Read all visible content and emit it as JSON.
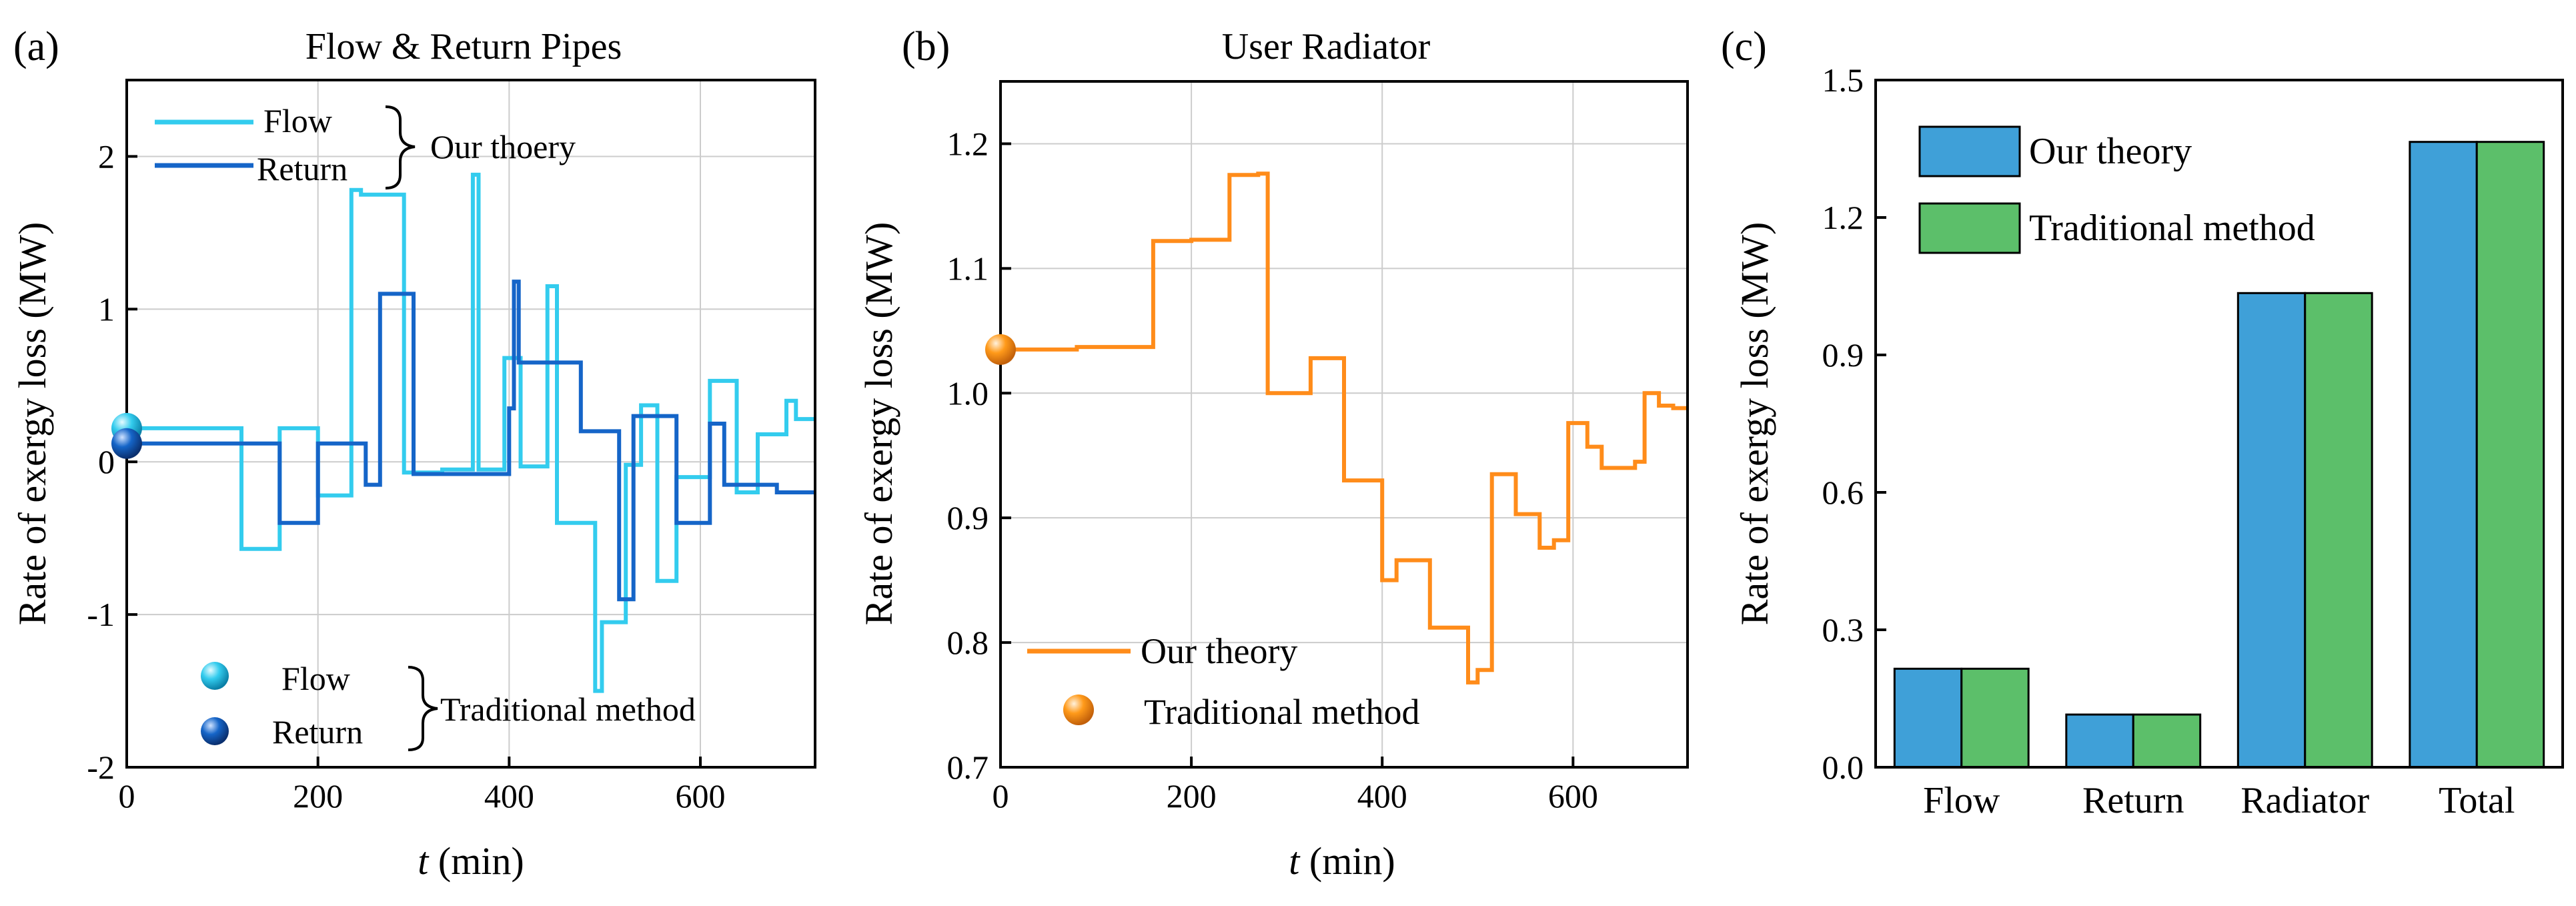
{
  "colors": {
    "flow": "#33CCEE",
    "return": "#1565C8",
    "radiator": "#FF8C1A",
    "our_theory_bar": "#3FA0D8",
    "traditional_bar": "#5CBF6A",
    "grid": "#CCCCCC"
  },
  "chart_data": [
    {
      "id": "a",
      "type": "line",
      "panel_label": "(a)",
      "title": "Flow & Return Pipes",
      "xlabel_var": "t",
      "xlabel_unit": " (min)",
      "ylabel": "Rate of exergy loss (MW)",
      "xlim": [
        0,
        720
      ],
      "ylim": [
        -2,
        2.5
      ],
      "xticks": [
        0,
        200,
        400,
        600
      ],
      "yticks": [
        -2,
        -1,
        0,
        1,
        2
      ],
      "grid": true,
      "series": [
        {
          "name": "Flow",
          "color_key": "flow",
          "x": [
            0,
            120,
            120,
            160,
            160,
            200,
            200,
            235,
            235,
            245,
            245,
            290,
            290,
            330,
            330,
            362,
            362,
            368,
            368,
            395,
            395,
            412,
            412,
            440,
            440,
            450,
            450,
            490,
            490,
            497,
            497,
            522,
            522,
            538,
            538,
            555,
            555,
            575,
            575,
            610,
            610,
            638,
            638,
            660,
            660,
            690,
            690,
            700,
            700,
            720
          ],
          "y": [
            0.22,
            0.22,
            -0.57,
            -0.57,
            0.22,
            0.22,
            -0.22,
            -0.22,
            1.78,
            1.78,
            1.75,
            1.75,
            -0.07,
            -0.07,
            -0.05,
            -0.05,
            1.88,
            1.88,
            -0.05,
            -0.05,
            0.68,
            0.68,
            -0.03,
            -0.03,
            1.15,
            1.15,
            -0.4,
            -0.4,
            -1.5,
            -1.5,
            -1.05,
            -1.05,
            -0.02,
            -0.02,
            0.37,
            0.37,
            -0.78,
            -0.78,
            -0.1,
            -0.1,
            0.53,
            0.53,
            -0.2,
            -0.2,
            0.18,
            0.18,
            0.4,
            0.4,
            0.28,
            0.28
          ]
        },
        {
          "name": "Return",
          "color_key": "return",
          "x": [
            0,
            160,
            160,
            200,
            200,
            250,
            250,
            265,
            265,
            300,
            300,
            400,
            400,
            405,
            405,
            410,
            410,
            475,
            475,
            515,
            515,
            530,
            530,
            575,
            575,
            610,
            610,
            625,
            625,
            680,
            680,
            720
          ],
          "y": [
            0.12,
            0.12,
            -0.4,
            -0.4,
            0.12,
            0.12,
            -0.15,
            -0.15,
            1.1,
            1.1,
            -0.08,
            -0.08,
            0.35,
            0.35,
            1.18,
            1.18,
            0.65,
            0.65,
            0.2,
            0.2,
            -0.9,
            -0.9,
            0.3,
            0.3,
            -0.4,
            -0.4,
            0.25,
            0.25,
            -0.15,
            -0.15,
            -0.2,
            -0.2
          ]
        }
      ],
      "traditional_points": [
        {
          "name": "Flow",
          "x": 0,
          "y": 0.22,
          "color_key": "flow"
        },
        {
          "name": "Return",
          "x": 0,
          "y": 0.12,
          "color_key": "return"
        }
      ],
      "legend": {
        "line_items": [
          "Flow",
          "Return"
        ],
        "line_group_label": "Our thoery",
        "point_items": [
          "Flow",
          "Return"
        ],
        "point_group_label": "Traditional method"
      }
    },
    {
      "id": "b",
      "type": "line",
      "panel_label": "(b)",
      "title": "User Radiator",
      "xlabel_var": "t",
      "xlabel_unit": " (min)",
      "ylabel": "Rate of exergy loss (MW)",
      "xlim": [
        0,
        720
      ],
      "ylim": [
        0.7,
        1.25
      ],
      "xticks": [
        0,
        200,
        400,
        600
      ],
      "yticks": [
        0.7,
        0.8,
        0.9,
        1.0,
        1.1,
        1.2
      ],
      "ytick_labels": [
        "0.7",
        "0.8",
        "0.9",
        "1.0",
        "1.1",
        "1.2"
      ],
      "grid": true,
      "series": [
        {
          "name": "Our theory",
          "color_key": "radiator",
          "x": [
            0,
            80,
            80,
            160,
            160,
            200,
            200,
            240,
            240,
            270,
            270,
            280,
            280,
            325,
            325,
            360,
            360,
            400,
            400,
            415,
            415,
            450,
            450,
            490,
            490,
            500,
            500,
            515,
            515,
            540,
            540,
            565,
            565,
            580,
            580,
            595,
            595,
            615,
            615,
            630,
            630,
            665,
            665,
            675,
            675,
            690,
            690,
            705,
            705,
            720
          ],
          "y": [
            1.035,
            1.035,
            1.037,
            1.037,
            1.122,
            1.122,
            1.123,
            1.123,
            1.175,
            1.175,
            1.176,
            1.176,
            1.0,
            1.0,
            1.028,
            1.028,
            0.93,
            0.93,
            0.85,
            0.85,
            0.866,
            0.866,
            0.812,
            0.812,
            0.768,
            0.768,
            0.778,
            0.778,
            0.935,
            0.935,
            0.903,
            0.903,
            0.876,
            0.876,
            0.882,
            0.882,
            0.976,
            0.976,
            0.957,
            0.957,
            0.94,
            0.94,
            0.945,
            0.945,
            1.0,
            1.0,
            0.99,
            0.99,
            0.988,
            0.988
          ]
        }
      ],
      "traditional_points": [
        {
          "name": "Traditional method",
          "x": 0,
          "y": 1.035,
          "color_key": "radiator"
        }
      ],
      "legend": {
        "line_label": "Our theory",
        "point_label": "Traditional method"
      }
    },
    {
      "id": "c",
      "type": "bar",
      "panel_label": "(c)",
      "ylabel": "Rate of exergy loss (MW)",
      "categories": [
        "Flow",
        "Return",
        "Radiator",
        "Total"
      ],
      "ylim": [
        0,
        1.5
      ],
      "yticks": [
        0.0,
        0.3,
        0.6,
        0.9,
        1.2,
        1.5
      ],
      "ytick_labels": [
        "0.0",
        "0.3",
        "0.6",
        "0.9",
        "1.2",
        "1.5"
      ],
      "grid": false,
      "series": [
        {
          "name": "Our theory",
          "color_key": "our_theory_bar",
          "values": [
            0.215,
            0.115,
            1.035,
            1.365
          ]
        },
        {
          "name": "Traditional method",
          "color_key": "traditional_bar",
          "values": [
            0.215,
            0.115,
            1.035,
            1.365
          ]
        }
      ]
    }
  ]
}
